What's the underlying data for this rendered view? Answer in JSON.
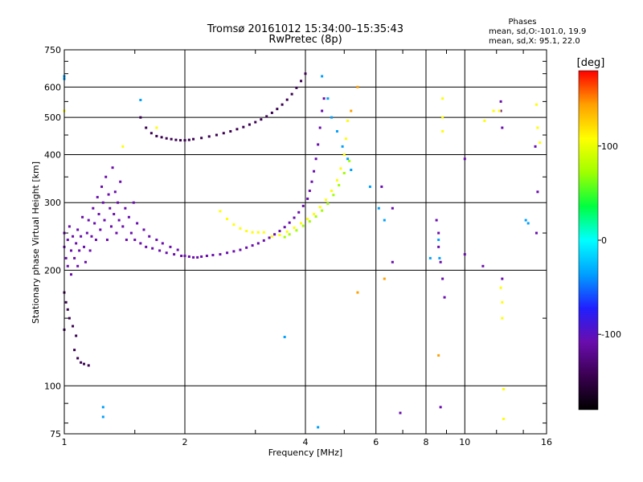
{
  "chart_data": {
    "type": "scatter",
    "title": "Tromsø 20161012 15:34:00–15:35:43",
    "subtitle": "RwPretec (8p)",
    "stats": {
      "title": "Phases",
      "o_line": "mean, sd,O:-101.0, 19.9",
      "x_line": "mean, sd,X:  95.1, 22.0"
    },
    "xlabel": "Frequency [MHz]",
    "ylabel": "Stationary phase Virtual Height [km]",
    "x_scale": "log",
    "y_scale": "log",
    "xlim": [
      1,
      16
    ],
    "ylim": [
      75,
      750
    ],
    "x_ticks": [
      {
        "value": 1,
        "label": "1"
      },
      {
        "value": 2,
        "label": "2"
      },
      {
        "value": 4,
        "label": "4"
      },
      {
        "value": 6,
        "label": "6"
      },
      {
        "value": 8,
        "label": "8"
      },
      {
        "value": 10,
        "label": "10"
      },
      {
        "value": 16,
        "label": "16"
      }
    ],
    "x_grid": [
      2,
      4,
      6,
      8,
      10
    ],
    "y_ticks": [
      {
        "value": 75,
        "label": "75"
      },
      {
        "value": 100,
        "label": "100"
      },
      {
        "value": 200,
        "label": "200"
      },
      {
        "value": 300,
        "label": "300"
      },
      {
        "value": 400,
        "label": "400"
      },
      {
        "value": 500,
        "label": "500"
      },
      {
        "value": 600,
        "label": "600"
      },
      {
        "value": 750,
        "label": "750"
      }
    ],
    "y_grid": [
      100,
      200,
      300,
      400,
      500,
      600
    ],
    "colorbar": {
      "unit": "[deg]",
      "range": [
        -180,
        180
      ],
      "ticks": [
        {
          "value": 100,
          "label": "100"
        },
        {
          "value": 0,
          "label": "0"
        },
        {
          "value": -100,
          "label": "-100"
        }
      ],
      "colors": [
        "#000000",
        "#3a0050",
        "#6a0dad",
        "#2020ff",
        "#00a0ff",
        "#00ffff",
        "#00ff40",
        "#a0ff00",
        "#ffff00",
        "#ffa000",
        "#ff0000"
      ]
    },
    "legend": "colorbar-right",
    "grid": true,
    "series": [
      {
        "phase_deg": -120,
        "points": [
          [
            1.0,
            230
          ],
          [
            1.0,
            250
          ],
          [
            1.01,
            215
          ],
          [
            1.02,
            240
          ],
          [
            1.02,
            205
          ],
          [
            1.03,
            260
          ],
          [
            1.04,
            225
          ],
          [
            1.04,
            195
          ],
          [
            1.05,
            245
          ],
          [
            1.06,
            215
          ],
          [
            1.07,
            235
          ],
          [
            1.08,
            255
          ],
          [
            1.08,
            205
          ],
          [
            1.09,
            225
          ],
          [
            1.1,
            245
          ],
          [
            1.11,
            275
          ],
          [
            1.12,
            230
          ],
          [
            1.13,
            210
          ],
          [
            1.14,
            250
          ],
          [
            1.15,
            270
          ],
          [
            1.16,
            225
          ],
          [
            1.17,
            245
          ],
          [
            1.18,
            290
          ],
          [
            1.19,
            265
          ],
          [
            1.2,
            240
          ],
          [
            1.21,
            310
          ],
          [
            1.22,
            280
          ],
          [
            1.23,
            255
          ],
          [
            1.24,
            330
          ],
          [
            1.25,
            300
          ],
          [
            1.26,
            270
          ],
          [
            1.27,
            350
          ],
          [
            1.28,
            240
          ],
          [
            1.29,
            315
          ],
          [
            1.3,
            290
          ],
          [
            1.31,
            260
          ],
          [
            1.32,
            370
          ],
          [
            1.33,
            280
          ],
          [
            1.34,
            320
          ],
          [
            1.35,
            250
          ],
          [
            1.36,
            300
          ],
          [
            1.37,
            270
          ],
          [
            1.38,
            340
          ],
          [
            1.4,
            260
          ],
          [
            1.42,
            290
          ],
          [
            1.43,
            240
          ],
          [
            1.45,
            275
          ],
          [
            1.47,
            250
          ],
          [
            1.49,
            300
          ],
          [
            1.5,
            240
          ],
          [
            1.52,
            265
          ],
          [
            1.55,
            235
          ],
          [
            1.58,
            255
          ],
          [
            1.6,
            230
          ],
          [
            1.63,
            245
          ],
          [
            1.66,
            228
          ],
          [
            1.7,
            240
          ],
          [
            1.73,
            225
          ],
          [
            1.76,
            235
          ],
          [
            1.8,
            222
          ],
          [
            1.84,
            230
          ],
          [
            1.88,
            220
          ],
          [
            1.92,
            226
          ],
          [
            1.96,
            218
          ],
          [
            2.0,
            218
          ],
          [
            2.05,
            217
          ],
          [
            2.1,
            216
          ],
          [
            2.15,
            216
          ],
          [
            2.2,
            217
          ],
          [
            2.27,
            218
          ],
          [
            2.35,
            219
          ],
          [
            2.45,
            220
          ],
          [
            2.55,
            222
          ],
          [
            2.65,
            224
          ],
          [
            2.75,
            226
          ],
          [
            2.85,
            229
          ],
          [
            2.95,
            232
          ],
          [
            3.05,
            235
          ],
          [
            3.15,
            239
          ],
          [
            3.25,
            243
          ],
          [
            3.35,
            248
          ],
          [
            3.45,
            253
          ],
          [
            3.55,
            259
          ],
          [
            3.65,
            266
          ],
          [
            3.75,
            274
          ],
          [
            3.85,
            283
          ],
          [
            3.95,
            294
          ],
          [
            4.05,
            307
          ],
          [
            4.1,
            322
          ],
          [
            4.15,
            340
          ],
          [
            4.2,
            362
          ],
          [
            4.25,
            390
          ],
          [
            4.3,
            425
          ],
          [
            4.35,
            470
          ],
          [
            4.4,
            520
          ],
          [
            4.45,
            560
          ]
        ]
      },
      {
        "phase_deg": -140,
        "points": [
          [
            1.55,
            500
          ],
          [
            1.6,
            470
          ],
          [
            1.65,
            455
          ],
          [
            1.7,
            447
          ],
          [
            1.75,
            444
          ],
          [
            1.8,
            441
          ],
          [
            1.85,
            439
          ],
          [
            1.9,
            437
          ],
          [
            1.95,
            436
          ],
          [
            2.0,
            436
          ],
          [
            2.05,
            437
          ],
          [
            2.1,
            439
          ],
          [
            2.2,
            442
          ],
          [
            2.3,
            446
          ],
          [
            2.4,
            450
          ],
          [
            2.5,
            455
          ],
          [
            2.6,
            460
          ],
          [
            2.7,
            466
          ],
          [
            2.8,
            472
          ],
          [
            2.9,
            479
          ],
          [
            3.0,
            486
          ],
          [
            3.1,
            494
          ],
          [
            3.2,
            503
          ],
          [
            3.3,
            514
          ],
          [
            3.4,
            526
          ],
          [
            3.5,
            540
          ],
          [
            3.6,
            556
          ],
          [
            3.7,
            575
          ],
          [
            3.8,
            597
          ],
          [
            3.9,
            622
          ],
          [
            4.0,
            650
          ],
          [
            1.0,
            175
          ],
          [
            1.01,
            165
          ],
          [
            1.02,
            158
          ],
          [
            1.03,
            150
          ],
          [
            1.0,
            140
          ],
          [
            1.05,
            143
          ],
          [
            1.07,
            135
          ],
          [
            1.06,
            124
          ],
          [
            1.08,
            118
          ],
          [
            1.1,
            115
          ],
          [
            1.12,
            114
          ],
          [
            1.15,
            113
          ]
        ]
      },
      {
        "phase_deg": 115,
        "points": [
          [
            2.45,
            285
          ],
          [
            2.55,
            272
          ],
          [
            2.65,
            263
          ],
          [
            2.75,
            257
          ],
          [
            2.85,
            253
          ],
          [
            2.95,
            251
          ],
          [
            3.05,
            251
          ],
          [
            3.15,
            251
          ],
          [
            3.3,
            245
          ],
          [
            3.45,
            247
          ],
          [
            3.6,
            252
          ],
          [
            3.75,
            258
          ],
          [
            3.9,
            265
          ],
          [
            4.05,
            272
          ],
          [
            4.2,
            280
          ],
          [
            4.35,
            292
          ],
          [
            4.5,
            305
          ],
          [
            4.65,
            322
          ],
          [
            4.8,
            343
          ],
          [
            4.9,
            368
          ],
          [
            5.0,
            400
          ],
          [
            5.05,
            440
          ],
          [
            5.1,
            490
          ]
        ]
      },
      {
        "phase_deg": 60,
        "points": [
          [
            3.55,
            244
          ],
          [
            3.65,
            248
          ],
          [
            3.8,
            254
          ],
          [
            3.95,
            261
          ],
          [
            4.1,
            268
          ],
          [
            4.25,
            276
          ],
          [
            4.4,
            286
          ],
          [
            4.55,
            298
          ],
          [
            4.7,
            314
          ],
          [
            4.85,
            333
          ],
          [
            5.0,
            358
          ],
          [
            5.15,
            385
          ]
        ]
      },
      {
        "phase_deg": -50,
        "points": [
          [
            4.4,
            640
          ],
          [
            4.55,
            560
          ],
          [
            4.65,
            500
          ],
          [
            4.8,
            460
          ],
          [
            4.95,
            420
          ],
          [
            5.1,
            390
          ],
          [
            5.2,
            365
          ],
          [
            1.0,
            630
          ],
          [
            1.55,
            555
          ],
          [
            3.55,
            134
          ],
          [
            4.3,
            78
          ]
        ]
      },
      {
        "phase_deg": 150,
        "points": [
          [
            5.4,
            175
          ],
          [
            6.3,
            190
          ],
          [
            5.2,
            520
          ],
          [
            5.4,
            600
          ],
          [
            8.6,
            120
          ]
        ]
      },
      {
        "phase_deg": -110,
        "points": [
          [
            6.2,
            330
          ],
          [
            6.6,
            290
          ],
          [
            6.6,
            210
          ],
          [
            8.5,
            270
          ],
          [
            8.6,
            250
          ],
          [
            8.6,
            230
          ],
          [
            8.7,
            210
          ],
          [
            8.8,
            190
          ],
          [
            8.9,
            170
          ],
          [
            10.0,
            390
          ],
          [
            10.0,
            220
          ],
          [
            11.1,
            205
          ],
          [
            12.3,
            550
          ],
          [
            12.3,
            520
          ],
          [
            12.4,
            470
          ],
          [
            12.4,
            190
          ],
          [
            15.0,
            420
          ],
          [
            15.2,
            320
          ],
          [
            15.1,
            250
          ],
          [
            6.9,
            85
          ],
          [
            8.7,
            88
          ]
        ]
      },
      {
        "phase_deg": 95,
        "points": [
          [
            1.0,
            520
          ],
          [
            1.4,
            420
          ],
          [
            1.7,
            470
          ],
          [
            11.2,
            490
          ],
          [
            11.8,
            520
          ],
          [
            12.2,
            520
          ],
          [
            12.3,
            180
          ],
          [
            12.4,
            165
          ],
          [
            12.4,
            150
          ],
          [
            12.5,
            98
          ],
          [
            12.5,
            82
          ],
          [
            15.1,
            540
          ],
          [
            15.2,
            470
          ],
          [
            15.4,
            430
          ],
          [
            8.8,
            460
          ],
          [
            8.8,
            500
          ],
          [
            8.8,
            560
          ]
        ]
      },
      {
        "phase_deg": -20,
        "points": [
          [
            5.8,
            330
          ],
          [
            6.1,
            290
          ],
          [
            6.3,
            270
          ],
          [
            8.2,
            215
          ],
          [
            8.6,
            240
          ],
          [
            8.65,
            215
          ],
          [
            14.4,
            265
          ],
          [
            1.25,
            88
          ],
          [
            1.25,
            83
          ],
          [
            1.0,
            640
          ],
          [
            14.2,
            270
          ]
        ]
      }
    ]
  }
}
